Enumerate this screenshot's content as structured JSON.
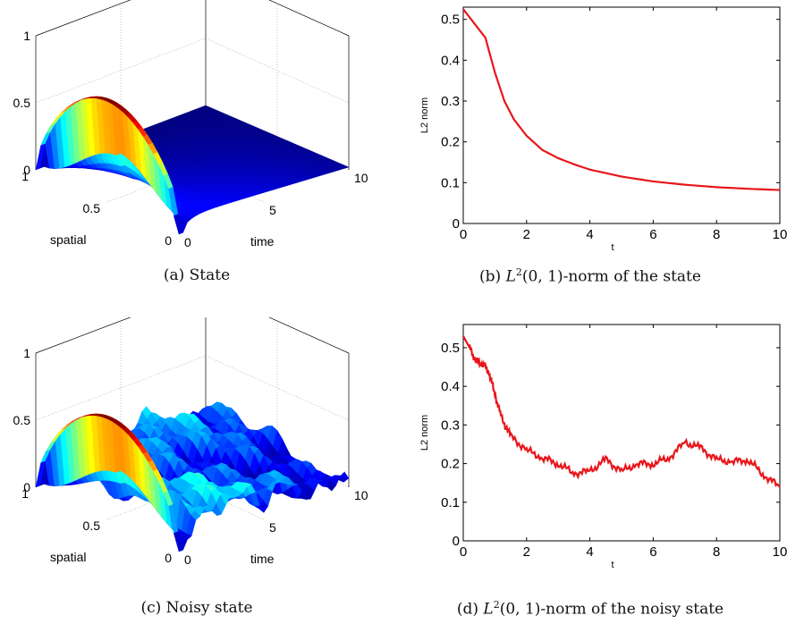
{
  "captions": {
    "a": "(a) State",
    "b": "(b) L²(0, 1)-norm of the state",
    "c": "(c) Noisy state",
    "d": "(d) L²(0, 1)-norm of the noisy state"
  },
  "colors": {
    "line": "#e8161b",
    "surface_low": "#1a2fd6",
    "surface_high": "#c8281a"
  },
  "chart_data": [
    {
      "id": "a",
      "type": "surface3d",
      "xlabel": "spatial",
      "ylabel": "time",
      "x_ticks": [
        "1",
        "0.5",
        "0"
      ],
      "y_ticks": [
        "0",
        "5",
        "10"
      ],
      "z_ticks": [
        "0",
        "0.5",
        "1"
      ],
      "x_range": [
        0,
        1
      ],
      "y_range": [
        0,
        10
      ],
      "z_range": [
        0,
        1
      ],
      "noisy": false
    },
    {
      "id": "b",
      "type": "line",
      "xlabel": "t",
      "ylabel": "L2 norm",
      "x_ticks": [
        "0",
        "2",
        "4",
        "6",
        "8",
        "10"
      ],
      "y_ticks": [
        "0",
        "0.1",
        "0.2",
        "0.3",
        "0.4",
        "0.5"
      ],
      "xlim": [
        0,
        10
      ],
      "ylim": [
        0,
        0.53
      ],
      "x": [
        0,
        0.3,
        0.6,
        0.7,
        1.0,
        1.3,
        1.6,
        2.0,
        2.5,
        3.0,
        3.5,
        4.0,
        5.0,
        6.0,
        7.0,
        8.0,
        9.0,
        10.0
      ],
      "y": [
        0.525,
        0.495,
        0.465,
        0.455,
        0.37,
        0.3,
        0.255,
        0.215,
        0.18,
        0.16,
        0.145,
        0.132,
        0.115,
        0.103,
        0.095,
        0.089,
        0.085,
        0.082
      ]
    },
    {
      "id": "c",
      "type": "surface3d",
      "xlabel": "spatial",
      "ylabel": "time",
      "x_ticks": [
        "1",
        "0.5",
        "0"
      ],
      "y_ticks": [
        "0",
        "5",
        "10"
      ],
      "z_ticks": [
        "0",
        "0.5",
        "1"
      ],
      "x_range": [
        0,
        1
      ],
      "y_range": [
        0,
        10
      ],
      "z_range": [
        0,
        1
      ],
      "noisy": true
    },
    {
      "id": "d",
      "type": "line",
      "xlabel": "t",
      "ylabel": "L2 norm",
      "x_ticks": [
        "0",
        "2",
        "4",
        "6",
        "8",
        "10"
      ],
      "y_ticks": [
        "0",
        "0.1",
        "0.2",
        "0.3",
        "0.4",
        "0.5"
      ],
      "xlim": [
        0,
        10
      ],
      "ylim": [
        0,
        0.56
      ],
      "x": [
        0,
        0.2,
        0.4,
        0.6,
        0.8,
        1.0,
        1.2,
        1.5,
        2.0,
        2.5,
        3.0,
        3.5,
        4.0,
        4.5,
        5.0,
        5.5,
        6.0,
        6.5,
        7.0,
        7.5,
        8.0,
        8.5,
        9.0,
        9.5,
        10.0
      ],
      "y": [
        0.53,
        0.5,
        0.465,
        0.46,
        0.44,
        0.38,
        0.32,
        0.27,
        0.235,
        0.215,
        0.2,
        0.175,
        0.18,
        0.21,
        0.18,
        0.2,
        0.2,
        0.215,
        0.255,
        0.24,
        0.21,
        0.205,
        0.21,
        0.17,
        0.14
      ]
    }
  ]
}
